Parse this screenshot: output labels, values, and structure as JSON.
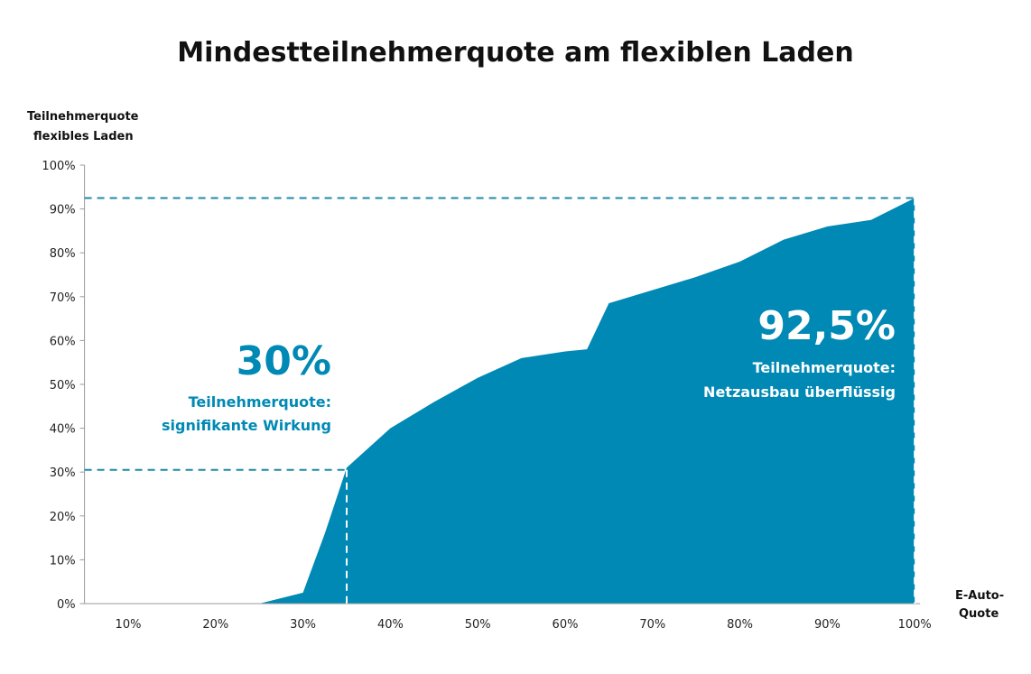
{
  "chart_data": {
    "type": "area",
    "title": "Mindestteilnehmerquote am flexiblen Laden",
    "ylabel": [
      "Teilnehmerquote",
      "flexibles Laden"
    ],
    "xlabel": [
      "E-Auto-",
      "Quote"
    ],
    "xlim": [
      5,
      100
    ],
    "ylim": [
      0,
      100
    ],
    "x_ticks": [
      "10%",
      "20%",
      "30%",
      "40%",
      "50%",
      "60%",
      "70%",
      "80%",
      "90%",
      "100%"
    ],
    "x_tick_values": [
      10,
      20,
      30,
      40,
      50,
      60,
      70,
      80,
      90,
      100
    ],
    "y_ticks": [
      "0%",
      "10%",
      "20%",
      "30%",
      "40%",
      "50%",
      "60%",
      "70%",
      "80%",
      "90%",
      "100%"
    ],
    "y_tick_values": [
      0,
      10,
      20,
      30,
      40,
      50,
      60,
      70,
      80,
      90,
      100
    ],
    "x": [
      5,
      10,
      15,
      20,
      25,
      30,
      32.5,
      35,
      40,
      45,
      50,
      55,
      60,
      62.5,
      65,
      70,
      75,
      80,
      85,
      90,
      95,
      100
    ],
    "values": [
      0,
      0,
      0,
      0,
      0,
      2.5,
      16,
      31,
      40,
      46,
      51.5,
      56,
      57.5,
      58,
      68.5,
      71.5,
      74.5,
      78,
      83,
      86,
      87.5,
      92.5
    ],
    "color": "#0089b4",
    "guide_color": "#1f8aa8",
    "annotations": [
      {
        "value": "30%",
        "line1": "Teilnehmerquote:",
        "line2": "signifikante Wirkung",
        "at_x": 35,
        "at_y": 30.5
      },
      {
        "value": "92,5%",
        "line1": "Teilnehmerquote:",
        "line2": "Netzausbau überflüssig",
        "at_x": 100,
        "at_y": 92.5
      }
    ]
  }
}
